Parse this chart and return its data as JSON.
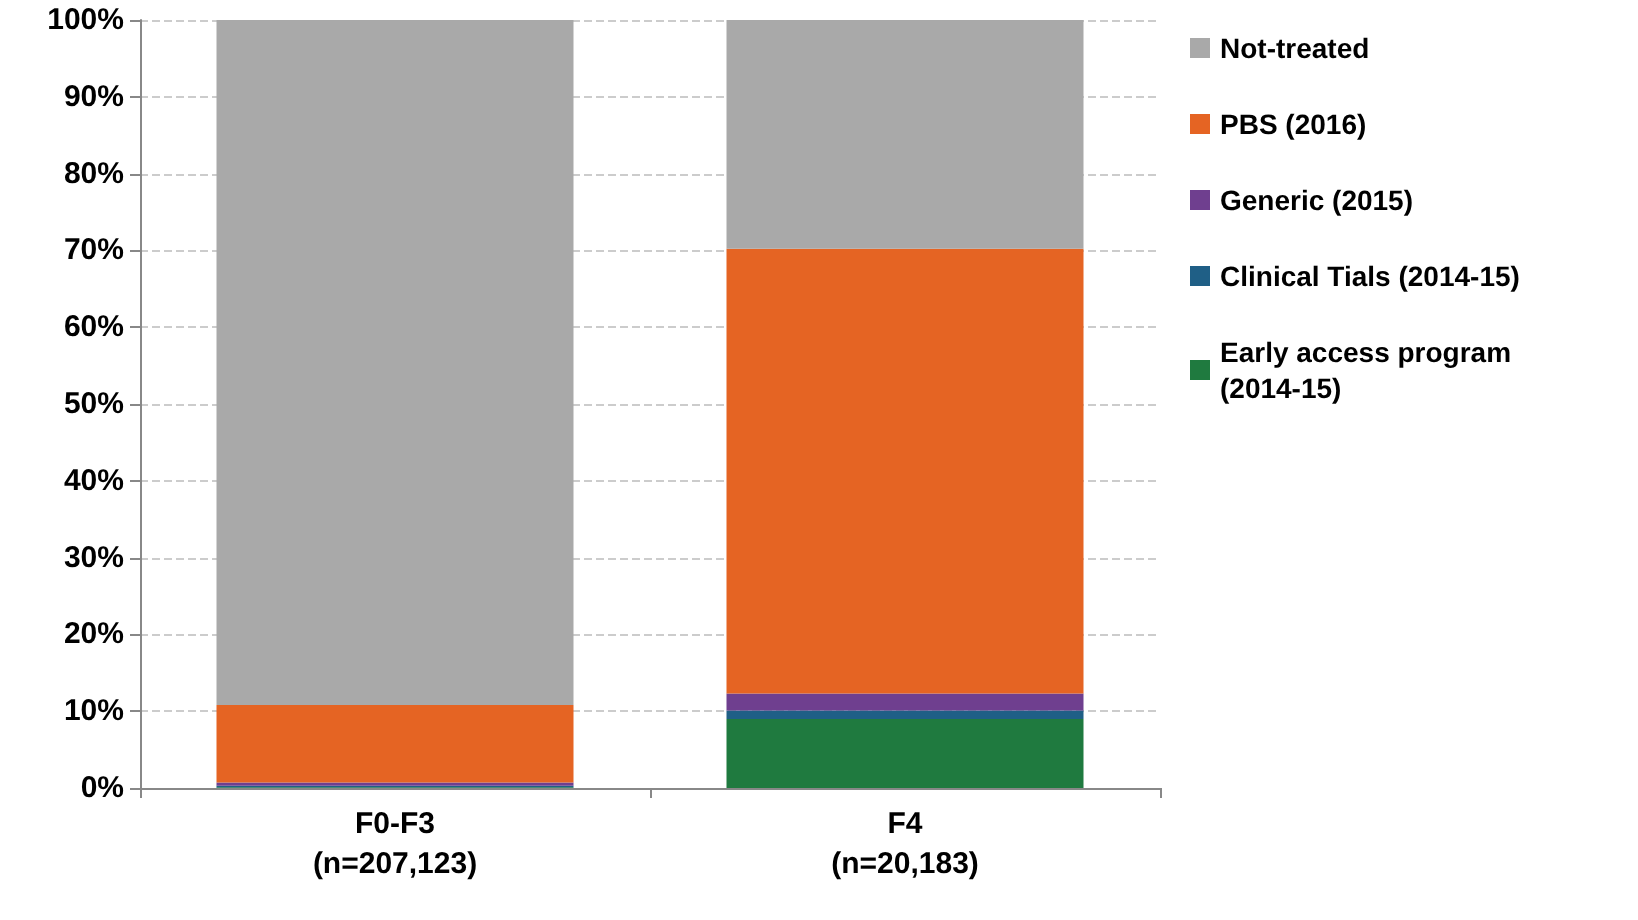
{
  "chart_data": {
    "type": "bar",
    "stacked": true,
    "categories": [
      "F0-F3\n(n=207,123)",
      "F4\n(n=20,183)"
    ],
    "series": [
      {
        "name": "Early access program\n(2014-15)",
        "color": "#1f7a3f",
        "values": [
          0.1,
          9.0
        ]
      },
      {
        "name": "Clinical Tials (2014-15)",
        "color": "#1f5f86",
        "values": [
          0.2,
          1.1
        ]
      },
      {
        "name": "Generic (2015)",
        "color": "#6f3f8f",
        "values": [
          0.4,
          2.2
        ]
      },
      {
        "name": "PBS (2016)",
        "color": "#e56423",
        "values": [
          10.1,
          57.9
        ]
      },
      {
        "name": "Not-treated",
        "color": "#a9a9a9",
        "values": [
          89.2,
          29.8
        ]
      }
    ],
    "ylim": [
      0,
      100
    ],
    "yticks": [
      {
        "value": 0,
        "label": "0%"
      },
      {
        "value": 10,
        "label": "10%"
      },
      {
        "value": 20,
        "label": "20%"
      },
      {
        "value": 30,
        "label": "30%"
      },
      {
        "value": 40,
        "label": "40%"
      },
      {
        "value": 50,
        "label": "50%"
      },
      {
        "value": 60,
        "label": "60%"
      },
      {
        "value": 70,
        "label": "70%"
      },
      {
        "value": 80,
        "label": "80%"
      },
      {
        "value": 90,
        "label": "90%"
      },
      {
        "value": 100,
        "label": "100%"
      }
    ],
    "grid": "y",
    "legend": "right"
  }
}
